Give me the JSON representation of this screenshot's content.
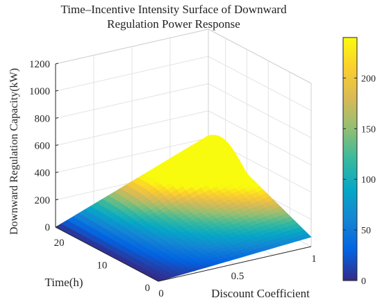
{
  "chart_data": {
    "type": "surface",
    "title": "Time–Incentive Intensity Surface of Downward Regulation Power Response",
    "title_lines": [
      "Time–Incentive Intensity Surface of Downward",
      "Regulation Power Response"
    ],
    "xlabel": "Discount Coefficient",
    "ylabel": "Time(h)",
    "zlabel": "Downward Regulation Capacity(kW)",
    "x_ticks": [
      "0",
      "0.5",
      "1"
    ],
    "y_ticks": [
      "0",
      "10",
      "20"
    ],
    "z_ticks": [
      "0",
      "200",
      "400",
      "600",
      "800",
      "1000",
      "1200"
    ],
    "xlim": [
      0,
      1
    ],
    "ylim": [
      0,
      24
    ],
    "zlim": [
      0,
      1200
    ],
    "grid": true,
    "colormap": "parula",
    "colorbar": {
      "ticks": [
        "0",
        "50",
        "100",
        "150",
        "200"
      ],
      "range": [
        0,
        240
      ],
      "position": "right"
    },
    "surface_description_points": [
      {
        "discount": 0.0,
        "time_h": 24,
        "capacity_kw": 0
      },
      {
        "discount": 0.0,
        "time_h": 0,
        "capacity_kw": 0
      },
      {
        "discount": 1.0,
        "time_h": 24,
        "capacity_kw": 420
      },
      {
        "discount": 1.0,
        "time_h": 12,
        "capacity_kw": 300
      },
      {
        "discount": 1.0,
        "time_h": 0,
        "capacity_kw": 70
      }
    ]
  },
  "colors": {
    "parula_stops": [
      "#352a87",
      "#0363e1",
      "#1485d4",
      "#06a7c6",
      "#38b99e",
      "#92bf73",
      "#d9ba56",
      "#fcce2e",
      "#f9fb0e"
    ],
    "axis": "#262626",
    "grid": "#e3e3e3"
  }
}
